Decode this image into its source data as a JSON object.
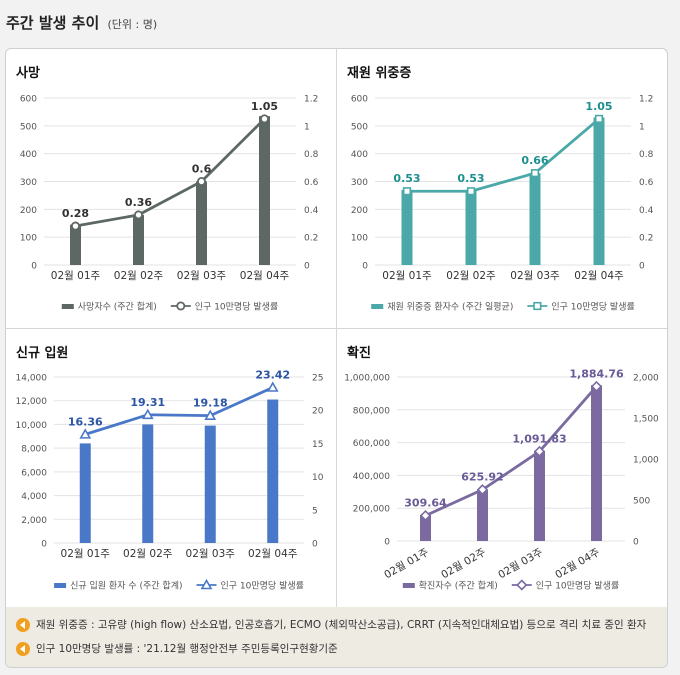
{
  "header": {
    "title": "주간 발생 추이",
    "unit": "(단위 : 명)"
  },
  "colors": {
    "death_bar": "#5d6764",
    "death_line": "#5d6764",
    "severe_bar": "#4aa8a8",
    "severe_line": "#4aa8a8",
    "admit_bar": "#4a78c8",
    "admit_line": "#4a78c8",
    "confirm_bar": "#7a6aa0",
    "confirm_line": "#7a6aa0",
    "note_icon": "#f0a020"
  },
  "chart_data": [
    {
      "type": "bar",
      "title": "사망",
      "categories": [
        "02월 01주",
        "02월 02주",
        "02월 03주",
        "02월 04주"
      ],
      "series": [
        {
          "name": "사망자수 (주간 합계)",
          "kind": "bar",
          "axis": "left",
          "values": [
            145,
            180,
            300,
            535
          ]
        },
        {
          "name": "인구 10만명당 발생률",
          "kind": "line",
          "axis": "right",
          "marker": "circle",
          "values": [
            0.28,
            0.36,
            0.6,
            1.05
          ],
          "labels": [
            "0.28",
            "0.36",
            "0.6",
            "1.05"
          ]
        }
      ],
      "y_left": {
        "ticks": [
          "0",
          "100",
          "200",
          "300",
          "400",
          "500",
          "600"
        ],
        "range": [
          0,
          600
        ]
      },
      "y_right": {
        "ticks": [
          "0",
          "0.2",
          "0.4",
          "0.6",
          "0.8",
          "1",
          "1.2"
        ],
        "range": [
          0,
          1.2
        ]
      }
    },
    {
      "type": "bar",
      "title": "재원 위중증",
      "categories": [
        "02월 01주",
        "02월 02주",
        "02월 03주",
        "02월 04주"
      ],
      "series": [
        {
          "name": "재원 위중증 환자수 (주간 일평균)",
          "kind": "bar",
          "axis": "left",
          "values": [
            270,
            270,
            330,
            530
          ]
        },
        {
          "name": "인구 10만명당 발생률",
          "kind": "line",
          "axis": "right",
          "marker": "square",
          "values": [
            0.53,
            0.53,
            0.66,
            1.05
          ],
          "labels": [
            "0.53",
            "0.53",
            "0.66",
            "1.05"
          ]
        }
      ],
      "y_left": {
        "ticks": [
          "0",
          "100",
          "200",
          "300",
          "400",
          "500",
          "600"
        ],
        "range": [
          0,
          600
        ]
      },
      "y_right": {
        "ticks": [
          "0",
          "0.2",
          "0.4",
          "0.6",
          "0.8",
          "1",
          "1.2"
        ],
        "range": [
          0,
          1.2
        ]
      }
    },
    {
      "type": "bar",
      "title": "신규 입원",
      "categories": [
        "02월 01주",
        "02월 02주",
        "02월 03주",
        "02월 04주"
      ],
      "series": [
        {
          "name": "신규 입원 환자 수 (주간 합계)",
          "kind": "bar",
          "axis": "left",
          "values": [
            8400,
            10000,
            9900,
            12100
          ]
        },
        {
          "name": "인구 10만명당 발생률",
          "kind": "line",
          "axis": "right",
          "marker": "triangle",
          "values": [
            16.36,
            19.31,
            19.18,
            23.42
          ],
          "labels": [
            "16.36",
            "19.31",
            "19.18",
            "23.42"
          ]
        }
      ],
      "y_left": {
        "ticks": [
          "0",
          "2,000",
          "4,000",
          "6,000",
          "8,000",
          "10,000",
          "12,000",
          "14,000"
        ],
        "range": [
          0,
          14000
        ]
      },
      "y_right": {
        "ticks": [
          "0",
          "5",
          "10",
          "15",
          "20",
          "25"
        ],
        "range": [
          0,
          25
        ]
      }
    },
    {
      "type": "bar",
      "title": "확진",
      "rotate_categories": true,
      "categories": [
        "02월 01주",
        "02월 02주",
        "02월 03주",
        "02월 04주"
      ],
      "series": [
        {
          "name": "확진자수 (주간 합계)",
          "kind": "bar",
          "axis": "left",
          "values": [
            160000,
            310000,
            550000,
            950000
          ]
        },
        {
          "name": "인구 10만명당 발생률",
          "kind": "line",
          "axis": "right",
          "marker": "diamond",
          "values": [
            309.64,
            625.92,
            1091.83,
            1884.76
          ],
          "labels": [
            "309.64",
            "625.92",
            "1,091.83",
            "1,884.76"
          ]
        }
      ],
      "y_left": {
        "ticks": [
          "0",
          "200,000",
          "400,000",
          "600,000",
          "800,000",
          "1,000,000"
        ],
        "range": [
          0,
          1000000
        ]
      },
      "y_right": {
        "ticks": [
          "0",
          "500",
          "1,000",
          "1,500",
          "2,000"
        ],
        "range": [
          0,
          2000
        ]
      }
    }
  ],
  "notes": [
    "재원 위중증 : 고유량 (high flow) 산소요법, 인공호흡기, ECMO (체외막산소공급), CRRT (지속적인대체요법) 등으로 격리 치료 중인 환자",
    "인구 10만명당 발생률 : '21.12월 행정안전부 주민등록인구현황기준"
  ]
}
